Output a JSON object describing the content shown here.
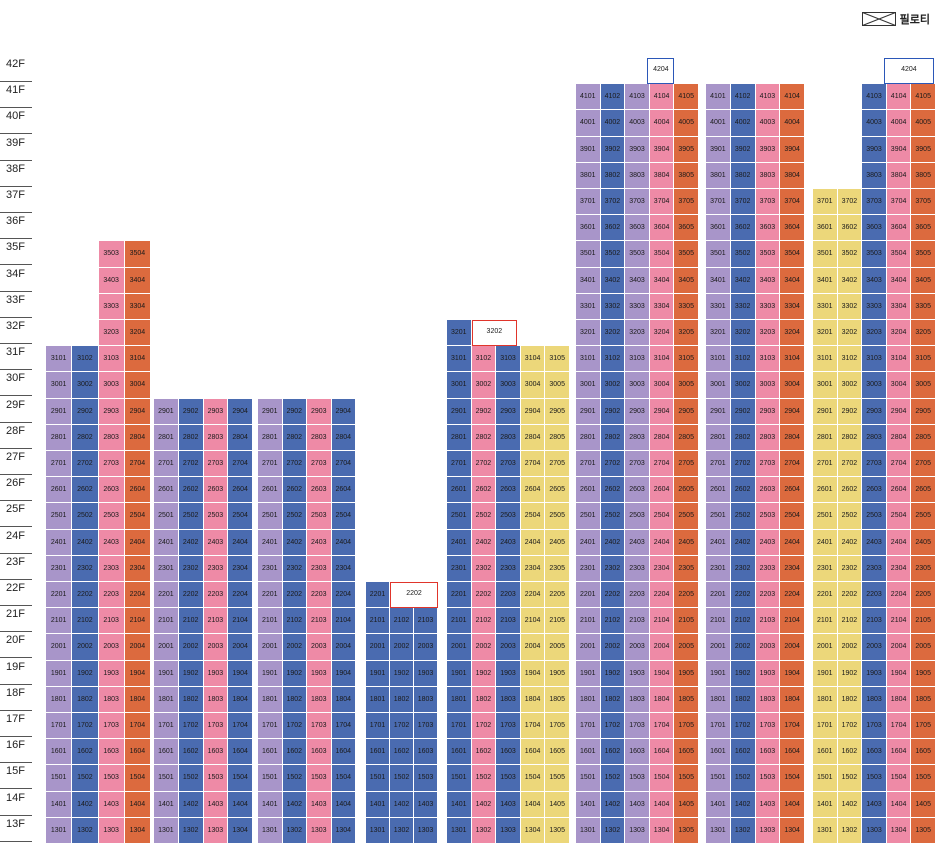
{
  "legend": {
    "label": "필로티",
    "icon": "piloti-x-box-icon"
  },
  "colors": {
    "purple": "#a895c9",
    "blue": "#4a6bb0",
    "pink": "#ee8aa6",
    "orange": "#dc6a3e",
    "yellow": "#ecd77a",
    "outline_blue": "#2b57b8",
    "outline_red": "#e0352b"
  },
  "floors": [
    "42F",
    "41F",
    "40F",
    "39F",
    "38F",
    "37F",
    "36F",
    "35F",
    "34F",
    "33F",
    "32F",
    "31F",
    "30F",
    "29F",
    "28F",
    "27F",
    "26F",
    "25F",
    "24F",
    "23F",
    "22F",
    "21F",
    "20F",
    "19F",
    "18F",
    "17F",
    "16F",
    "15F",
    "14F",
    "13F"
  ],
  "buildings": [
    {
      "id": "A",
      "lines": [
        "01",
        "02",
        "03",
        "04"
      ],
      "colors": [
        "purple",
        "blue",
        "pink",
        "orange"
      ],
      "top": 31,
      "extra": [
        {
          "floor": 35,
          "units": [
            "3503",
            "3504"
          ]
        },
        {
          "floor": 34,
          "units": [
            "3403",
            "3404"
          ]
        },
        {
          "floor": 33,
          "units": [
            "3303",
            "3304"
          ]
        },
        {
          "floor": 32,
          "units": [
            "3203",
            "3204"
          ]
        }
      ]
    },
    {
      "id": "B",
      "lines": [
        "01",
        "02",
        "03",
        "04"
      ],
      "colors": [
        "purple",
        "blue",
        "pink",
        "blue"
      ],
      "top": 29
    },
    {
      "id": "C",
      "lines": [
        "01",
        "02",
        "03",
        "04"
      ],
      "colors": [
        "purple",
        "blue",
        "pink",
        "blue"
      ],
      "top": 29
    },
    {
      "id": "D",
      "lines": [
        "01",
        "02",
        "03"
      ],
      "colors": [
        "blue",
        "blue",
        "blue"
      ],
      "top": 21,
      "extra": [
        {
          "floor": 22,
          "units": [
            "2201"
          ],
          "outline": "2202",
          "outline_color": "red"
        }
      ]
    },
    {
      "id": "E",
      "lines": [
        "01",
        "02",
        "03",
        "04",
        "05"
      ],
      "colors": [
        "blue",
        "pink",
        "blue",
        "yellow",
        "yellow"
      ],
      "top": 31,
      "extra": [
        {
          "floor": 32,
          "units": [
            "3201"
          ],
          "outline": "3202",
          "outline_color": "red"
        }
      ]
    },
    {
      "id": "F",
      "lines": [
        "01",
        "02",
        "03",
        "04",
        "05"
      ],
      "colors": [
        "purple",
        "blue",
        "purple",
        "pink",
        "orange"
      ],
      "top": 41,
      "extra": [
        {
          "floor": 42,
          "outline": "4204",
          "outline_color": "blue"
        }
      ]
    },
    {
      "id": "G",
      "lines": [
        "01",
        "02",
        "03",
        "04"
      ],
      "colors": [
        "purple",
        "blue",
        "pink",
        "orange"
      ],
      "top": 41
    },
    {
      "id": "H",
      "lines": [
        "01",
        "02",
        "03",
        "04",
        "05"
      ],
      "colors": [
        "yellow",
        "yellow",
        "blue",
        "pink",
        "orange"
      ],
      "top": 37,
      "upper": {
        "from": 38,
        "to": 41,
        "lines": [
          "03",
          "04",
          "05"
        ]
      },
      "extra": [
        {
          "floor": 42,
          "outline": "4204",
          "outline_color": "blue"
        }
      ]
    }
  ]
}
